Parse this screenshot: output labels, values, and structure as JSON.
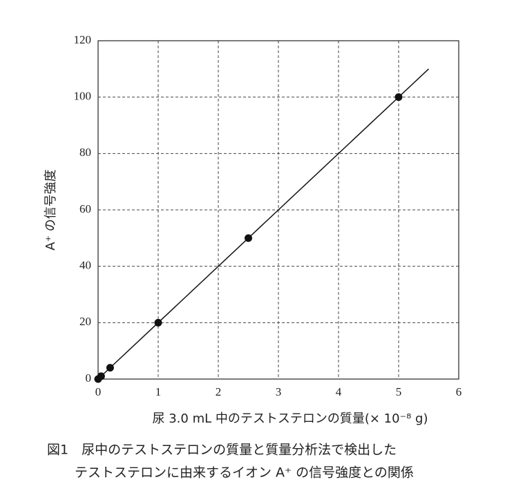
{
  "chart_data": {
    "type": "scatter",
    "x_label": "尿 3.0 mL 中のテストステロンの質量(× 10⁻⁸ g)",
    "y_label": "A⁺ の信号強度",
    "caption": [
      "図1　尿中のテストステロンの質量と質量分析法で検出した",
      "テストステロンに由来するイオン A⁺ の信号強度との関係"
    ],
    "points": {
      "x": [
        0,
        0.05,
        0.2,
        1,
        2.5,
        5
      ],
      "y": [
        0,
        1,
        4,
        20,
        50,
        100
      ],
      "color": "#111111"
    },
    "fit_line": {
      "x": [
        0,
        5.5
      ],
      "y": [
        0,
        110
      ],
      "color": "#111111"
    },
    "xlim": [
      0,
      6
    ],
    "ylim": [
      0,
      120
    ],
    "xticks": [
      0,
      1,
      2,
      3,
      4,
      5,
      6
    ],
    "yticks": [
      0,
      20,
      40,
      60,
      80,
      100,
      120
    ],
    "grid": true
  }
}
